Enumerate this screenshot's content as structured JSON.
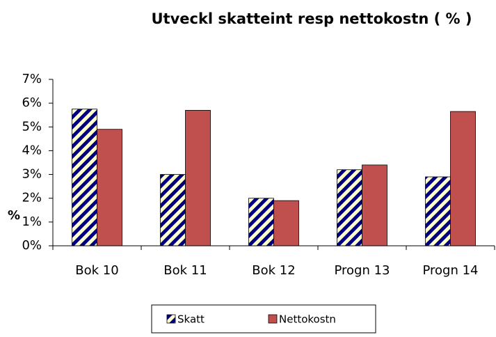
{
  "chart_data": {
    "type": "bar",
    "title": "Utveckl skatteint resp nettokostn ( % )",
    "y_label": "%",
    "categories": [
      "Bok 10",
      "Bok 11",
      "Bok 12",
      "Progn 13",
      "Progn 14"
    ],
    "series": [
      {
        "name": "Skatt",
        "color": "#000080",
        "hatch": true,
        "values": [
          5.75,
          3.0,
          2.0,
          3.2,
          2.9
        ]
      },
      {
        "name": "Nettokostn",
        "color": "#c0504d",
        "hatch": false,
        "values": [
          4.9,
          5.7,
          1.9,
          3.4,
          5.65
        ]
      }
    ],
    "ylim": [
      0,
      7
    ],
    "yticks": [
      {
        "value": 0,
        "label": "0%"
      },
      {
        "value": 1,
        "label": "1%"
      },
      {
        "value": 2,
        "label": "2%"
      },
      {
        "value": 3,
        "label": "3%"
      },
      {
        "value": 4,
        "label": "4%"
      },
      {
        "value": 5,
        "label": "5%"
      },
      {
        "value": 6,
        "label": "6%"
      },
      {
        "value": 7,
        "label": "7%"
      }
    ],
    "grid": false,
    "legend": "bottom"
  }
}
